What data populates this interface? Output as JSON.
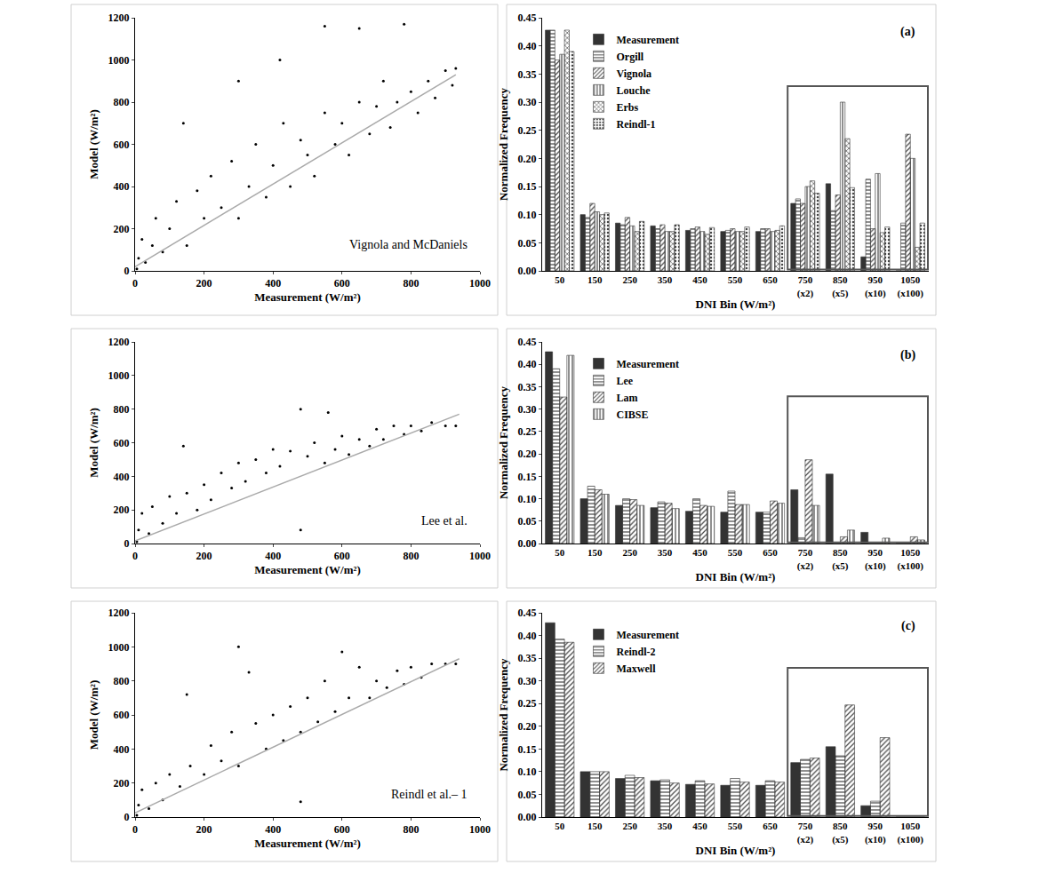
{
  "chart_data": [
    {
      "type": "scatter",
      "annotation": "Vignola and McDaniels",
      "xlabel": "Measurement (W/m²)",
      "ylabel": "Model (W/m²)",
      "xlim": [
        0,
        1000
      ],
      "ylim": [
        0,
        1200
      ],
      "xticks": [
        0,
        200,
        400,
        600,
        800,
        1000
      ],
      "yticks": [
        0,
        200,
        400,
        600,
        800,
        1000,
        1200
      ],
      "series": [
        {
          "type": "scatter",
          "marker": "circle",
          "color": "#000000",
          "x": [
            5,
            10,
            20,
            30,
            50,
            60,
            80,
            100,
            120,
            140,
            150,
            180,
            200,
            220,
            250,
            280,
            300,
            300,
            330,
            350,
            380,
            400,
            420,
            430,
            450,
            480,
            500,
            520,
            550,
            550,
            580,
            600,
            620,
            650,
            650,
            680,
            700,
            720,
            740,
            760,
            780,
            800,
            820,
            850,
            870,
            900,
            920,
            930
          ],
          "values": [
            10,
            60,
            150,
            40,
            120,
            250,
            90,
            200,
            330,
            700,
            120,
            380,
            250,
            450,
            300,
            520,
            900,
            250,
            400,
            600,
            350,
            500,
            1000,
            700,
            400,
            620,
            550,
            450,
            750,
            1160,
            600,
            700,
            550,
            800,
            1150,
            650,
            780,
            900,
            680,
            800,
            1170,
            850,
            750,
            900,
            820,
            950,
            880,
            960
          ]
        },
        {
          "type": "line",
          "color": "#aaaaaa",
          "x": [
            0,
            930
          ],
          "values": [
            20,
            930
          ]
        }
      ]
    },
    {
      "type": "bar",
      "title": "(a)",
      "xlabel": "DNI Bin (W/m²)",
      "ylabel": "Normalized Frequency",
      "categories": [
        "50",
        "150",
        "250",
        "350",
        "450",
        "550",
        "650",
        "750 (x2)",
        "850 (x5)",
        "950 (x10)",
        "1050 (x100)"
      ],
      "ylim": [
        0,
        0.45
      ],
      "yticks": [
        {
          "value": 0,
          "label": "0.00"
        },
        0.05,
        {
          "value": 0.1,
          "label": "0.10"
        },
        0.15,
        {
          "value": 0.2,
          "label": "0.20"
        },
        0.25,
        {
          "value": 0.3,
          "label": "0.30"
        },
        0.35,
        {
          "value": 0.4,
          "label": "0.40"
        },
        0.45
      ],
      "legend": "upper left",
      "series": [
        {
          "name": "Measurement",
          "color": "#333333",
          "values": [
            0.428,
            0.1,
            0.085,
            0.08,
            0.072,
            0.07,
            0.07,
            0.12,
            0.155,
            0.025,
            0
          ]
        },
        {
          "name": "Orgill",
          "color": "#bdbdbd",
          "values": [
            0.428,
            0.095,
            0.082,
            0.075,
            0.075,
            0.072,
            0.075,
            0.128,
            0.107,
            0.163,
            0.085
          ]
        },
        {
          "name": "Vignola",
          "color": "#9e9e9e",
          "values": [
            0.375,
            0.12,
            0.095,
            0.082,
            0.078,
            0.075,
            0.075,
            0.12,
            0.135,
            0.075,
            0.243
          ]
        },
        {
          "name": "Louche",
          "color": "#d6d6d6",
          "values": [
            0.385,
            0.105,
            0.08,
            0.07,
            0.07,
            0.07,
            0.07,
            0.15,
            0.3,
            0.173,
            0.2
          ]
        },
        {
          "name": "Erbs",
          "color": "#555555",
          "values": [
            0.428,
            0.1,
            0.07,
            0.07,
            0.065,
            0.07,
            0.072,
            0.16,
            0.235,
            0.068,
            0.042
          ]
        },
        {
          "name": "Reindl-1",
          "color": "#c8c8c8",
          "values": [
            0.39,
            0.103,
            0.088,
            0.082,
            0.077,
            0.078,
            0.08,
            0.138,
            0.148,
            0.078,
            0.085
          ]
        }
      ]
    },
    {
      "type": "scatter",
      "annotation": "Lee et al.",
      "xlabel": "Measurement (W/m²)",
      "ylabel": "Model (W/m²)",
      "xlim": [
        0,
        1000
      ],
      "ylim": [
        0,
        1200
      ],
      "xticks": [
        0,
        200,
        400,
        600,
        800,
        1000
      ],
      "yticks": [
        0,
        200,
        400,
        600,
        800,
        1000,
        1200
      ],
      "series": [
        {
          "type": "scatter",
          "marker": "circle",
          "color": "#000000",
          "x": [
            5,
            10,
            20,
            40,
            50,
            80,
            100,
            120,
            140,
            150,
            180,
            200,
            220,
            250,
            280,
            300,
            320,
            350,
            380,
            400,
            420,
            450,
            480,
            480,
            500,
            520,
            550,
            560,
            580,
            600,
            620,
            650,
            680,
            700,
            720,
            750,
            780,
            800,
            830,
            860,
            900,
            930
          ],
          "values": [
            10,
            80,
            180,
            60,
            220,
            120,
            280,
            180,
            580,
            300,
            200,
            350,
            260,
            420,
            330,
            480,
            370,
            500,
            420,
            560,
            460,
            550,
            800,
            80,
            520,
            600,
            480,
            780,
            560,
            640,
            530,
            620,
            580,
            680,
            620,
            700,
            650,
            700,
            670,
            720,
            700,
            700
          ]
        },
        {
          "type": "line",
          "color": "#aaaaaa",
          "x": [
            0,
            940
          ],
          "values": [
            15,
            770
          ]
        }
      ]
    },
    {
      "type": "bar",
      "title": "(b)",
      "xlabel": "DNI Bin (W/m²)",
      "ylabel": "Normalized Frequency",
      "categories": [
        "50",
        "150",
        "250",
        "350",
        "450",
        "550",
        "650",
        "750 (x2)",
        "850 (x5)",
        "950 (x10)",
        "1050 (x100)"
      ],
      "ylim": [
        0,
        0.45
      ],
      "yticks": [
        {
          "value": 0,
          "label": "0.00"
        },
        0.05,
        {
          "value": 0.1,
          "label": "0.10"
        },
        0.15,
        {
          "value": 0.2,
          "label": "0.20"
        },
        0.25,
        {
          "value": 0.3,
          "label": "0.30"
        },
        0.35,
        {
          "value": 0.4,
          "label": "0.40"
        },
        0.45
      ],
      "legend": "upper left",
      "series": [
        {
          "name": "Measurement",
          "color": "#333333",
          "values": [
            0.428,
            0.1,
            0.085,
            0.08,
            0.072,
            0.07,
            0.07,
            0.12,
            0.155,
            0.025,
            0
          ]
        },
        {
          "name": "Lee",
          "color": "#bdbdbd",
          "values": [
            0.39,
            0.128,
            0.1,
            0.093,
            0.1,
            0.117,
            0.07,
            0.013,
            0,
            0,
            0
          ]
        },
        {
          "name": "Lam",
          "color": "#9e9e9e",
          "values": [
            0.327,
            0.12,
            0.098,
            0.09,
            0.085,
            0.087,
            0.095,
            0.187,
            0.015,
            0,
            0.015
          ]
        },
        {
          "name": "CIBSE",
          "color": "#8a8a8a",
          "values": [
            0.42,
            0.11,
            0.085,
            0.078,
            0.083,
            0.087,
            0.09,
            0.085,
            0.03,
            0.012,
            0.008
          ]
        }
      ]
    },
    {
      "type": "scatter",
      "annotation": "Reindl et al.– 1",
      "xlabel": "Measurement (W/m²)",
      "ylabel": "Model (W/m²)",
      "xlim": [
        0,
        1000
      ],
      "ylim": [
        0,
        1200
      ],
      "xticks": [
        0,
        200,
        400,
        600,
        800,
        1000
      ],
      "yticks": [
        0,
        200,
        400,
        600,
        800,
        1000,
        1200
      ],
      "series": [
        {
          "type": "scatter",
          "marker": "circle",
          "color": "#000000",
          "x": [
            5,
            10,
            20,
            40,
            60,
            80,
            100,
            130,
            150,
            160,
            200,
            220,
            250,
            280,
            300,
            300,
            330,
            350,
            380,
            400,
            430,
            450,
            480,
            480,
            500,
            530,
            550,
            580,
            600,
            620,
            650,
            680,
            700,
            730,
            760,
            780,
            800,
            830,
            860,
            900,
            930
          ],
          "values": [
            10,
            70,
            160,
            50,
            200,
            100,
            250,
            180,
            720,
            300,
            250,
            420,
            330,
            500,
            1000,
            300,
            850,
            550,
            400,
            600,
            450,
            650,
            500,
            90,
            700,
            560,
            800,
            620,
            970,
            700,
            880,
            700,
            800,
            760,
            860,
            780,
            880,
            820,
            900,
            900,
            900
          ]
        },
        {
          "type": "line",
          "color": "#aaaaaa",
          "x": [
            0,
            940
          ],
          "values": [
            25,
            930
          ]
        }
      ]
    },
    {
      "type": "bar",
      "title": "(c)",
      "xlabel": "DNI Bin (W/m²)",
      "ylabel": "Normalized Frequency",
      "categories": [
        "50",
        "150",
        "250",
        "350",
        "450",
        "550",
        "650",
        "750 (x2)",
        "850 (x5)",
        "950 (x10)",
        "1050 (x100)"
      ],
      "ylim": [
        0,
        0.45
      ],
      "yticks": [
        {
          "value": 0,
          "label": "0.00"
        },
        0.05,
        {
          "value": 0.1,
          "label": "0.10"
        },
        0.15,
        {
          "value": 0.2,
          "label": "0.20"
        },
        0.25,
        {
          "value": 0.3,
          "label": "0.30"
        },
        0.35,
        {
          "value": 0.4,
          "label": "0.40"
        },
        0.45
      ],
      "legend": "upper left",
      "series": [
        {
          "name": "Measurement",
          "color": "#333333",
          "values": [
            0.428,
            0.1,
            0.085,
            0.08,
            0.072,
            0.07,
            0.07,
            0.12,
            0.155,
            0.025,
            0
          ]
        },
        {
          "name": "Reindl-2",
          "color": "#a8a8a8",
          "values": [
            0.392,
            0.1,
            0.092,
            0.082,
            0.08,
            0.085,
            0.08,
            0.127,
            0.135,
            0.035,
            0
          ]
        },
        {
          "name": "Maxwell",
          "color": "#cfcfcf",
          "values": [
            0.385,
            0.1,
            0.087,
            0.075,
            0.073,
            0.077,
            0.077,
            0.13,
            0.247,
            0.175,
            0
          ]
        }
      ]
    }
  ]
}
